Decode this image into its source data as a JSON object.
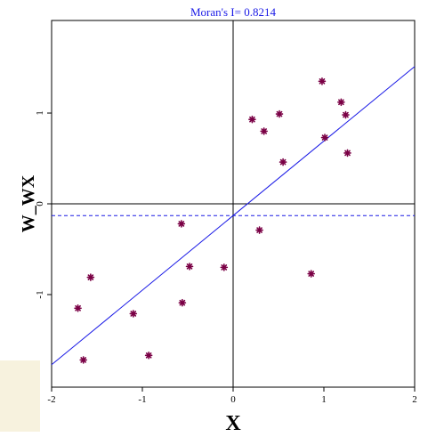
{
  "chart_data": {
    "type": "scatter",
    "title": "Moran's I= 0.8214",
    "xlabel": "X",
    "ylabel": "W_WX",
    "xlim": [
      -2,
      2
    ],
    "ylim": [
      -2.02,
      2.02
    ],
    "xticks": [
      -2,
      -1,
      0,
      1,
      2
    ],
    "yticks": [
      -1,
      0,
      1
    ],
    "xtick_labels": [
      "-2",
      "-1",
      "0",
      "1",
      "2"
    ],
    "ytick_labels": [
      "-1",
      "0",
      "1"
    ],
    "grid": false,
    "points": [
      {
        "x": -1.71,
        "y": -1.15
      },
      {
        "x": -1.65,
        "y": -1.72
      },
      {
        "x": -1.57,
        "y": -0.81
      },
      {
        "x": -1.1,
        "y": -1.21
      },
      {
        "x": -0.93,
        "y": -1.67
      },
      {
        "x": -0.57,
        "y": -0.22
      },
      {
        "x": -0.56,
        "y": -1.09
      },
      {
        "x": -0.48,
        "y": -0.69
      },
      {
        "x": -0.1,
        "y": -0.7
      },
      {
        "x": 0.21,
        "y": 0.93
      },
      {
        "x": 0.29,
        "y": -0.29
      },
      {
        "x": 0.34,
        "y": 0.8
      },
      {
        "x": 0.51,
        "y": 0.99
      },
      {
        "x": 0.55,
        "y": 0.46
      },
      {
        "x": 0.86,
        "y": -0.77
      },
      {
        "x": 0.98,
        "y": 1.35
      },
      {
        "x": 1.01,
        "y": 0.73
      },
      {
        "x": 1.19,
        "y": 1.12
      },
      {
        "x": 1.24,
        "y": 0.98
      },
      {
        "x": 1.26,
        "y": 0.56
      }
    ],
    "regression_line": {
      "slope": 0.8214,
      "intercept": -0.13
    },
    "mean_line_y": -0.13,
    "colors": {
      "points": "#7a0045",
      "regression": "#1a1ae6",
      "mean_line": "#1a1ae6",
      "title": "#1a1ae6",
      "axes": "#000000",
      "panel": "#f7f2de"
    }
  }
}
